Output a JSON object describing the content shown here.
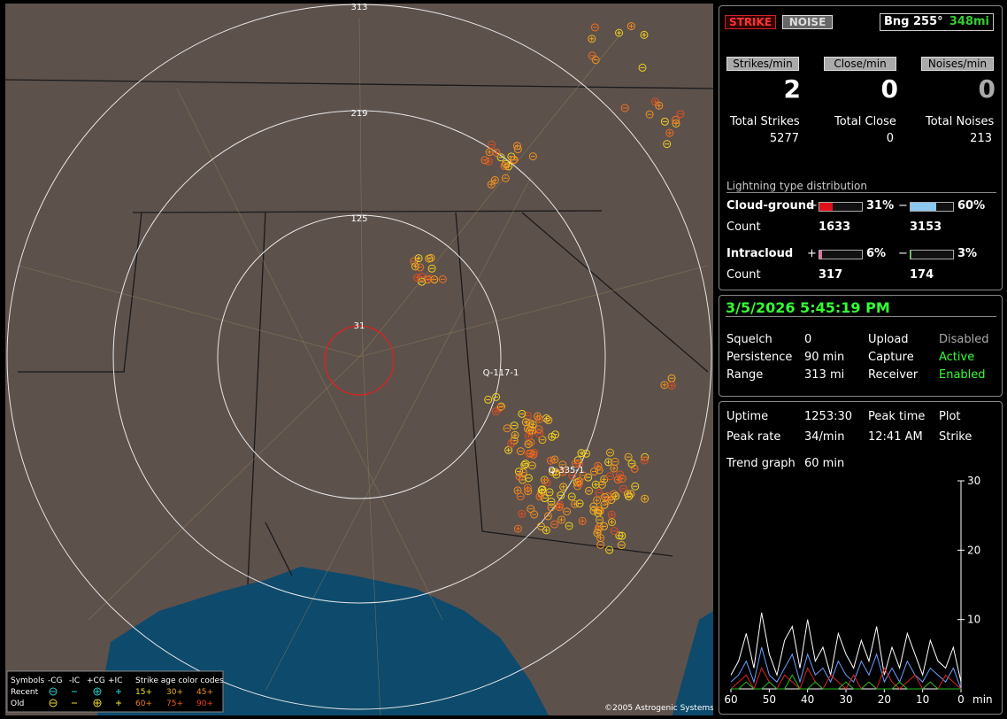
{
  "map": {
    "rings": [
      "313",
      "219",
      "125",
      "31"
    ],
    "markers": [
      "Q-117-1",
      "Q-335-1"
    ],
    "copyright": "©2005 Astrogenic Systems",
    "legend": {
      "symbols": "Symbols",
      "neg_cg": "-CG",
      "neg_ic": "-IC",
      "pos_cg": "+CG",
      "pos_ic": "+IC",
      "age_title": "Strike age color codes",
      "recent": "Recent",
      "old": "Old",
      "ages": [
        "15+",
        "30+",
        "45+",
        "60+",
        "75+",
        "90+"
      ]
    }
  },
  "status": {
    "strike": "STRIKE",
    "noise": "NOISE",
    "bearing": "Bng 255°",
    "distance": "348mi"
  },
  "rates": {
    "labels": [
      "Strikes/min",
      "Close/min",
      "Noises/min"
    ],
    "values": [
      2,
      0,
      0
    ]
  },
  "totals": {
    "labels": [
      "Total Strikes",
      "Total Close",
      "Total Noises"
    ],
    "values": [
      5277,
      0,
      213
    ]
  },
  "distribution": {
    "title": "Lightning type distribution",
    "count_label": "Count",
    "plus": "+",
    "minus": "−",
    "rows": [
      {
        "name": "Cloud-ground",
        "pos": 31,
        "pos_label": "31%",
        "neg": 60,
        "neg_label": "60%",
        "pos_count": 1633,
        "neg_count": 3153,
        "pos_color": "#e0101a",
        "neg_color": "#8cc8f0"
      },
      {
        "name": "Intracloud",
        "pos": 6,
        "pos_label": "6%",
        "neg": 3,
        "neg_label": "3%",
        "pos_count": 317,
        "neg_count": 174,
        "pos_color": "#e070a0",
        "neg_color": "#30c030"
      }
    ]
  },
  "datetime": "3/5/2026 5:45:19 PM",
  "settings": [
    [
      "Squelch",
      "0",
      "Upload",
      "Disabled"
    ],
    [
      "Persistence",
      "90 min",
      "Capture",
      "Active"
    ],
    [
      "Range",
      "313 mi",
      "Receiver",
      "Enabled"
    ]
  ],
  "stats": [
    [
      "Uptime",
      "1253:30",
      "Peak time",
      "Plot"
    ],
    [
      "Peak rate",
      "34/min",
      "12:41 AM",
      "Strike"
    ],
    [
      "Trend graph",
      "60 min"
    ]
  ],
  "trend": {
    "type": "line",
    "ylim": [
      0,
      30
    ],
    "yticks": [
      10,
      20,
      30
    ],
    "xlim": [
      60,
      0
    ],
    "xticks": [
      60,
      50,
      40,
      30,
      20,
      10,
      0
    ],
    "x_unit": "min",
    "x": [
      60,
      58,
      56,
      54,
      52,
      50,
      48,
      46,
      44,
      42,
      40,
      38,
      36,
      34,
      32,
      30,
      28,
      26,
      24,
      22,
      20,
      18,
      16,
      14,
      12,
      10,
      8,
      6,
      4,
      2,
      0
    ],
    "series": [
      {
        "color": "#ffffff",
        "values": [
          2,
          4,
          8,
          3,
          11,
          5,
          2,
          7,
          9,
          3,
          10,
          4,
          6,
          2,
          8,
          5,
          3,
          7,
          4,
          9,
          2,
          6,
          3,
          8,
          5,
          2,
          7,
          4,
          3,
          6,
          1
        ]
      },
      {
        "color": "#6aa0ff",
        "values": [
          1,
          2,
          4,
          1,
          6,
          2,
          1,
          3,
          5,
          1,
          5,
          2,
          3,
          1,
          4,
          2,
          1,
          4,
          2,
          5,
          1,
          3,
          1,
          4,
          2,
          1,
          3,
          2,
          1,
          3,
          0
        ]
      },
      {
        "color": "#e02020",
        "values": [
          0,
          1,
          2,
          0,
          3,
          1,
          0,
          2,
          1,
          0,
          3,
          1,
          0,
          2,
          1,
          0,
          2,
          0,
          1,
          0,
          3,
          1,
          0,
          1,
          2,
          0,
          1,
          0,
          2,
          1,
          0
        ]
      },
      {
        "color": "#20c020",
        "values": [
          0,
          0,
          1,
          0,
          0,
          1,
          0,
          0,
          2,
          0,
          0,
          1,
          0,
          0,
          0,
          1,
          0,
          0,
          1,
          0,
          0,
          0,
          1,
          0,
          0,
          0,
          1,
          0,
          0,
          0,
          0
        ]
      }
    ]
  }
}
